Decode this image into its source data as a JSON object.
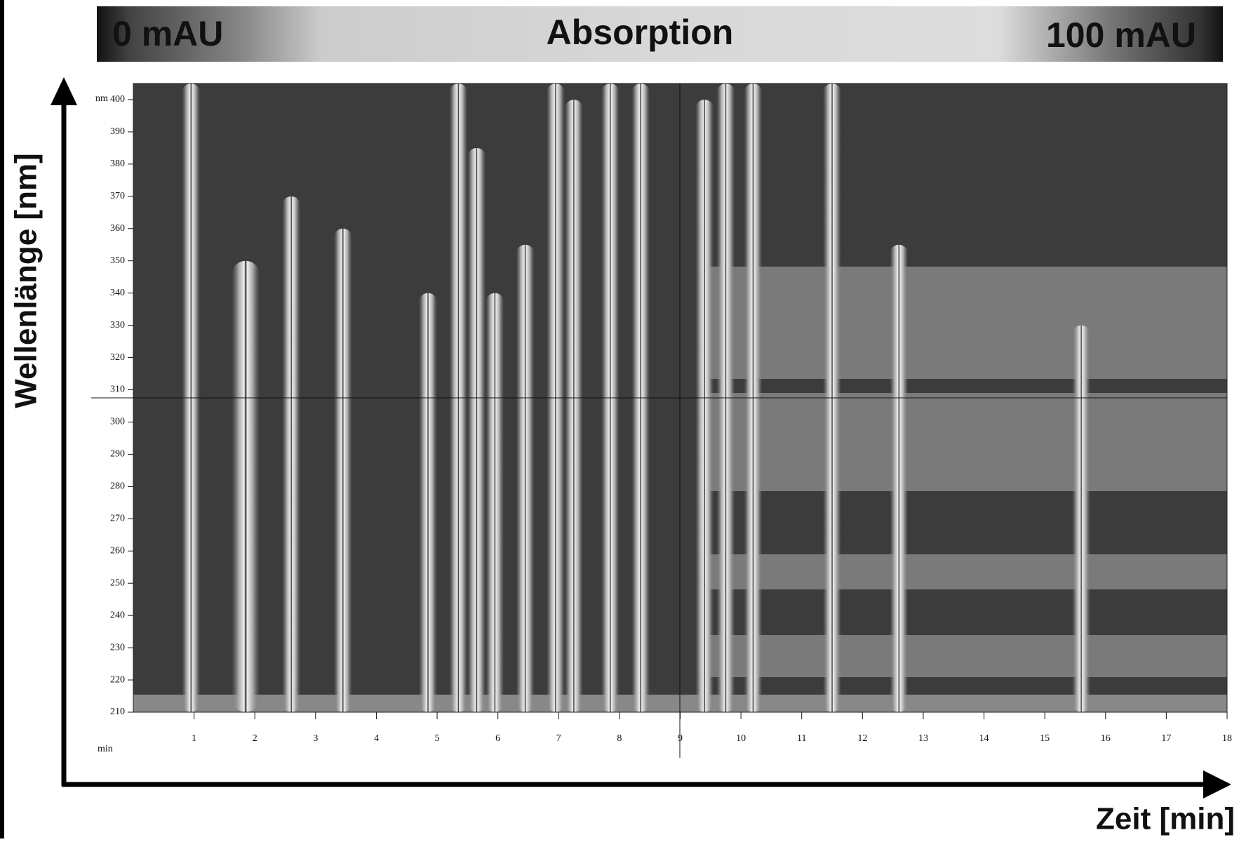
{
  "chart_data": {
    "type": "heatmap",
    "colorbar": {
      "min_label": "0 mAU",
      "title": "Absorption",
      "max_label": "100 mAU"
    },
    "xlabel": "Zeit [min]",
    "ylabel": "Wellenlänge [nm]",
    "x_unit": "min",
    "y_unit": "nm",
    "xlim": [
      0,
      18
    ],
    "xticks": [
      1,
      2,
      3,
      4,
      5,
      6,
      7,
      8,
      9,
      10,
      11,
      12,
      13,
      14,
      15,
      16,
      17,
      18
    ],
    "ylim": [
      210,
      405
    ],
    "yticks": [
      210,
      220,
      230,
      240,
      250,
      260,
      270,
      280,
      290,
      300,
      310,
      320,
      330,
      340,
      350,
      360,
      370,
      380,
      390,
      400
    ],
    "x": [
      0.95,
      1.85,
      2.6,
      3.45,
      4.85,
      5.35,
      5.65,
      5.95,
      6.45,
      6.95,
      7.25,
      7.85,
      8.35,
      9.4,
      9.75,
      10.2,
      11.5,
      12.6,
      15.6
    ],
    "values": [
      405,
      350,
      370,
      360,
      340,
      405,
      385,
      340,
      355,
      405,
      400,
      405,
      405,
      400,
      405,
      405,
      405,
      355,
      330
    ]
  }
}
